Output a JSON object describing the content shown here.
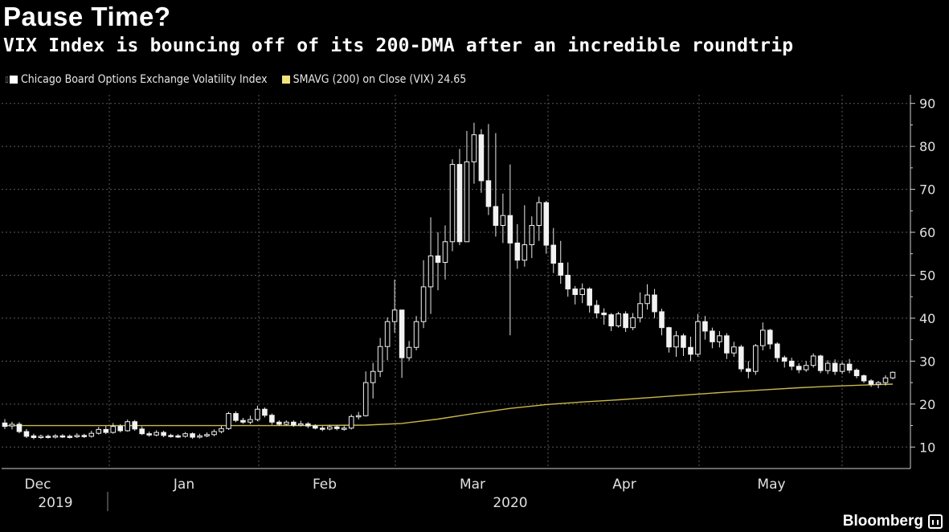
{
  "chart_data": {
    "type": "candlestick",
    "title": "Pause Time?",
    "subtitle": "VIX Index is bouncing off of its 200-DMA after an incredible roundtrip",
    "legend": [
      {
        "name": "Chicago Board Options Exchange Volatility Index",
        "color": "#ffffff"
      },
      {
        "name": "SMAVG (200)  on Close (VIX) 24.65",
        "color": "#f2e27a"
      }
    ],
    "y_axis": {
      "position": "right",
      "ticks": [
        10,
        20,
        30,
        40,
        50,
        60,
        70,
        80,
        90
      ],
      "ylim": [
        5,
        92
      ]
    },
    "x_labels": [
      {
        "month": "Dec",
        "year": "2019"
      },
      {
        "month": "Jan",
        "year": ""
      },
      {
        "month": "Feb",
        "year": ""
      },
      {
        "month": "Mar",
        "year": "2020"
      },
      {
        "month": "Apr",
        "year": ""
      },
      {
        "month": "May",
        "year": ""
      }
    ],
    "grid": true,
    "candles": [
      [
        15.6,
        14.8,
        16.5,
        14.2
      ],
      [
        14.9,
        15.3,
        15.9,
        14.1
      ],
      [
        15.3,
        13.6,
        15.8,
        13.2
      ],
      [
        13.6,
        12.5,
        14.2,
        12.1
      ],
      [
        12.6,
        12.2,
        13.1,
        11.8
      ],
      [
        12.2,
        12.5,
        12.9,
        11.9
      ],
      [
        12.5,
        12.3,
        12.9,
        12.0
      ],
      [
        12.3,
        12.6,
        13.0,
        12.0
      ],
      [
        12.6,
        12.5,
        13.0,
        12.1
      ],
      [
        12.5,
        12.4,
        12.9,
        12.0
      ],
      [
        12.4,
        12.7,
        13.2,
        12.1
      ],
      [
        12.7,
        12.5,
        13.1,
        12.1
      ],
      [
        12.5,
        13.2,
        13.8,
        12.2
      ],
      [
        13.2,
        14.1,
        14.7,
        12.9
      ],
      [
        14.1,
        13.4,
        14.9,
        13.0
      ],
      [
        13.4,
        14.8,
        15.6,
        13.1
      ],
      [
        14.8,
        13.8,
        15.3,
        13.4
      ],
      [
        13.8,
        15.9,
        16.4,
        13.6
      ],
      [
        15.9,
        14.2,
        16.3,
        13.8
      ],
      [
        14.2,
        13.1,
        14.8,
        12.8
      ],
      [
        13.1,
        12.8,
        13.6,
        12.4
      ],
      [
        12.8,
        13.4,
        13.9,
        12.5
      ],
      [
        13.4,
        12.7,
        13.8,
        12.3
      ],
      [
        12.7,
        12.6,
        13.1,
        12.2
      ],
      [
        12.6,
        12.5,
        13.0,
        12.1
      ],
      [
        12.5,
        13.1,
        13.5,
        12.2
      ],
      [
        13.1,
        12.3,
        13.4,
        11.9
      ],
      [
        12.3,
        12.6,
        13.1,
        12.0
      ],
      [
        12.6,
        12.9,
        13.4,
        12.3
      ],
      [
        12.9,
        13.6,
        14.1,
        12.5
      ],
      [
        13.6,
        14.3,
        14.9,
        13.2
      ],
      [
        14.3,
        17.8,
        18.2,
        14.0
      ],
      [
        17.8,
        16.2,
        18.3,
        15.8
      ],
      [
        16.2,
        15.8,
        16.8,
        15.4
      ],
      [
        15.8,
        16.4,
        17.3,
        15.3
      ],
      [
        16.4,
        18.8,
        19.6,
        16.0
      ],
      [
        18.8,
        17.4,
        19.2,
        16.9
      ],
      [
        17.4,
        15.8,
        17.8,
        15.2
      ],
      [
        15.8,
        15.3,
        16.2,
        14.9
      ],
      [
        15.3,
        15.8,
        16.2,
        15.0
      ],
      [
        15.8,
        15.1,
        16.2,
        14.7
      ],
      [
        15.1,
        15.4,
        16.1,
        14.8
      ],
      [
        15.4,
        14.9,
        15.8,
        14.4
      ],
      [
        14.9,
        14.4,
        15.3,
        14.1
      ],
      [
        14.4,
        14.2,
        14.9,
        13.7
      ],
      [
        14.2,
        14.7,
        15.2,
        13.9
      ],
      [
        14.7,
        14.3,
        15.1,
        13.9
      ],
      [
        14.3,
        14.4,
        15.0,
        13.8
      ],
      [
        14.4,
        17.1,
        17.6,
        14.1
      ],
      [
        17.1,
        17.3,
        18.2,
        16.4
      ],
      [
        17.3,
        25.0,
        27.6,
        17.1
      ],
      [
        25.0,
        27.6,
        29.6,
        21.3
      ],
      [
        27.6,
        33.4,
        35.4,
        26.3
      ],
      [
        33.4,
        39.2,
        40.2,
        30.2
      ],
      [
        39.2,
        41.9,
        49.0,
        36.6
      ],
      [
        41.9,
        30.8,
        41.9,
        26.1
      ],
      [
        30.8,
        33.2,
        34.7,
        30.1
      ],
      [
        33.2,
        39.2,
        40.5,
        32.5
      ],
      [
        39.2,
        47.3,
        53.5,
        37.7
      ],
      [
        47.3,
        54.5,
        63.5,
        41.0
      ],
      [
        54.5,
        53.0,
        60.0,
        46.5
      ],
      [
        53.0,
        57.8,
        61.6,
        49.0
      ],
      [
        57.8,
        75.8,
        77.0,
        55.6
      ],
      [
        75.8,
        57.8,
        79.4,
        57.0
      ],
      [
        57.8,
        76.4,
        83.6,
        58.0
      ],
      [
        76.4,
        82.7,
        85.5,
        71.3
      ],
      [
        82.7,
        72.0,
        84.0,
        69.2
      ],
      [
        72.0,
        66.0,
        85.2,
        64.0
      ],
      [
        66.0,
        61.6,
        83.1,
        59.0
      ],
      [
        61.6,
        63.9,
        69.0,
        57.5
      ],
      [
        63.9,
        57.5,
        75.8,
        36.0
      ],
      [
        57.5,
        53.5,
        61.9,
        51.5
      ],
      [
        53.5,
        57.1,
        66.3,
        52.0
      ],
      [
        57.1,
        61.6,
        63.7,
        54.0
      ],
      [
        61.6,
        66.9,
        68.3,
        58.0
      ],
      [
        66.9,
        57.0,
        67.3,
        55.0
      ],
      [
        57.0,
        52.8,
        61.0,
        50.5
      ],
      [
        52.8,
        50.0,
        58.0,
        48.0
      ],
      [
        50.0,
        46.8,
        53.0,
        45.0
      ],
      [
        46.8,
        45.5,
        47.5,
        43.2
      ],
      [
        45.5,
        46.8,
        48.1,
        43.5
      ],
      [
        46.8,
        43.0,
        47.2,
        41.3
      ],
      [
        43.0,
        41.2,
        44.2,
        40.0
      ],
      [
        41.2,
        40.8,
        42.3,
        38.5
      ],
      [
        40.8,
        38.2,
        41.2,
        37.0
      ],
      [
        38.2,
        41.0,
        41.5,
        37.8
      ],
      [
        41.0,
        37.8,
        41.6,
        36.8
      ],
      [
        37.8,
        40.1,
        41.2,
        37.2
      ],
      [
        40.1,
        43.4,
        46.0,
        39.0
      ],
      [
        43.4,
        45.4,
        47.9,
        42.0
      ],
      [
        45.4,
        41.5,
        46.8,
        40.0
      ],
      [
        41.5,
        37.8,
        42.2,
        36.0
      ],
      [
        37.8,
        33.3,
        38.0,
        32.0
      ],
      [
        33.3,
        35.9,
        37.0,
        31.0
      ],
      [
        35.9,
        33.2,
        36.4,
        31.2
      ],
      [
        33.2,
        31.6,
        35.7,
        30.0
      ],
      [
        31.6,
        39.2,
        41.0,
        31.0
      ],
      [
        39.2,
        37.0,
        40.5,
        35.0
      ],
      [
        37.0,
        34.5,
        37.8,
        33.0
      ],
      [
        34.5,
        35.9,
        37.0,
        33.2
      ],
      [
        35.9,
        31.9,
        36.5,
        30.5
      ],
      [
        31.9,
        33.3,
        34.5,
        31.0
      ],
      [
        33.3,
        28.2,
        33.8,
        27.5
      ],
      [
        28.2,
        27.6,
        30.0,
        26.0
      ],
      [
        27.6,
        33.6,
        34.0,
        26.8
      ],
      [
        33.6,
        37.2,
        39.0,
        32.5
      ],
      [
        37.2,
        34.0,
        37.5,
        32.8
      ],
      [
        34.0,
        30.8,
        34.4,
        29.8
      ],
      [
        30.8,
        30.0,
        31.3,
        28.5
      ],
      [
        30.0,
        28.8,
        30.8,
        27.9
      ],
      [
        28.8,
        28.0,
        29.5,
        27.2
      ],
      [
        28.0,
        29.0,
        30.0,
        27.5
      ],
      [
        29.0,
        31.2,
        31.8,
        28.5
      ],
      [
        31.2,
        27.8,
        31.5,
        27.2
      ],
      [
        27.8,
        29.5,
        30.2,
        27.0
      ],
      [
        29.5,
        27.6,
        30.4,
        26.8
      ],
      [
        27.6,
        29.3,
        29.8,
        27.0
      ],
      [
        29.3,
        27.9,
        30.5,
        27.2
      ],
      [
        27.9,
        26.6,
        28.3,
        26.0
      ],
      [
        26.6,
        25.4,
        26.9,
        24.9
      ],
      [
        25.4,
        24.6,
        25.8,
        24.0
      ],
      [
        24.6,
        25.0,
        25.4,
        23.7
      ],
      [
        25.0,
        26.1,
        26.7,
        24.3
      ],
      [
        26.1,
        27.4,
        27.6,
        25.8
      ]
    ],
    "sma200": [
      [
        0,
        15.0
      ],
      [
        20,
        15.0
      ],
      [
        40,
        15.0
      ],
      [
        50,
        15.1
      ],
      [
        55,
        15.5
      ],
      [
        60,
        16.5
      ],
      [
        65,
        17.8
      ],
      [
        70,
        19.0
      ],
      [
        75,
        19.9
      ],
      [
        80,
        20.5
      ],
      [
        85,
        21.0
      ],
      [
        90,
        21.6
      ],
      [
        95,
        22.2
      ],
      [
        100,
        22.8
      ],
      [
        105,
        23.3
      ],
      [
        110,
        23.8
      ],
      [
        115,
        24.2
      ],
      [
        120,
        24.5
      ],
      [
        123,
        24.65
      ]
    ]
  }
}
